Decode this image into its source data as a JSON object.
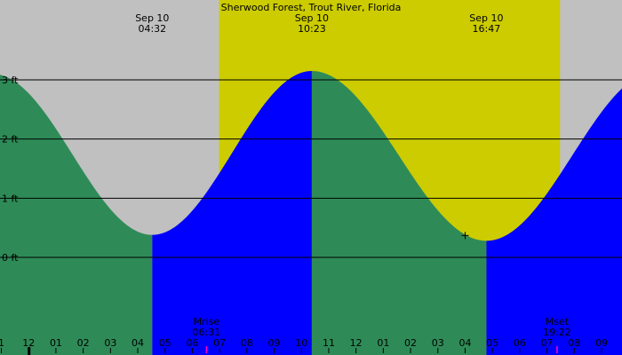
{
  "chart_data": {
    "type": "area",
    "title": "Sherwood Forest, Trout River, Florida",
    "xlabel": "",
    "ylabel": "",
    "x_unit": "hour",
    "xlim": [
      0.95,
      23.75
    ],
    "ylim": [
      -1.65,
      4.35
    ],
    "y_ticks": [
      {
        "value": 0,
        "label": "0 ft"
      },
      {
        "value": 1,
        "label": "1 ft"
      },
      {
        "value": 2,
        "label": "2 ft"
      },
      {
        "value": 3,
        "label": "3 ft"
      }
    ],
    "x_tick_labels": [
      {
        "hour": 1,
        "label": "1"
      },
      {
        "hour": 2,
        "label": "12"
      },
      {
        "hour": 3,
        "label": "01"
      },
      {
        "hour": 4,
        "label": "02"
      },
      {
        "hour": 5,
        "label": "03"
      },
      {
        "hour": 6,
        "label": "04"
      },
      {
        "hour": 7,
        "label": "05"
      },
      {
        "hour": 8,
        "label": "06"
      },
      {
        "hour": 9,
        "label": "07"
      },
      {
        "hour": 10,
        "label": "08"
      },
      {
        "hour": 11,
        "label": "09"
      },
      {
        "hour": 12,
        "label": "10"
      },
      {
        "hour": 13,
        "label": "11"
      },
      {
        "hour": 14,
        "label": "12"
      },
      {
        "hour": 15,
        "label": "01"
      },
      {
        "hour": 16,
        "label": "02"
      },
      {
        "hour": 17,
        "label": "03"
      },
      {
        "hour": 18,
        "label": "04"
      },
      {
        "hour": 19,
        "label": "05"
      },
      {
        "hour": 20,
        "label": "06"
      },
      {
        "hour": 21,
        "label": "07"
      },
      {
        "hour": 22,
        "label": "08"
      },
      {
        "hour": 23,
        "label": "09"
      }
    ],
    "daylight": {
      "start": 8.98,
      "end": 21.48
    },
    "extremes": [
      {
        "hour": 6.53,
        "height": 0.38,
        "type": "low",
        "date": "Sep 10",
        "time": "04:32"
      },
      {
        "hour": 12.38,
        "height": 3.15,
        "type": "high",
        "date": "Sep 10",
        "time": "10:23"
      },
      {
        "hour": 18.78,
        "height": 0.28,
        "type": "low",
        "date": "Sep 10",
        "time": "16:47"
      }
    ],
    "start_height": 3.1,
    "end_height": 3.15,
    "events": [
      {
        "name": "Mrise",
        "time": "06:31",
        "hour": 8.52
      },
      {
        "name": "Mset",
        "time": "19:22",
        "hour": 21.37
      }
    ],
    "cursor": {
      "hour": 18.0,
      "height": 0.37
    },
    "colors": {
      "night": "#c0c0c0",
      "day": "#cccc00",
      "falling": "#2e8b57",
      "rising": "#0000ff",
      "line": "#000000",
      "event_tick": "#ff00cc"
    }
  }
}
